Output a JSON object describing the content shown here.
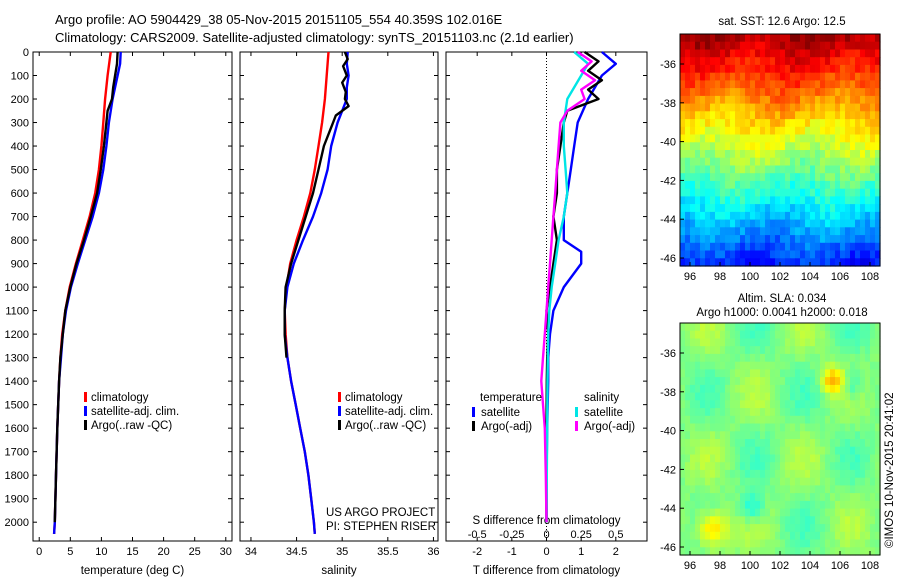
{
  "header": {
    "line1": "Argo profile: AO 5904429_38 05-Nov-2015 20151105_554 40.359S 102.016E",
    "line2": "Climatology: CARS2009. Satellite-adjusted climatology: synTS_20151103.nc (2.1d earlier)"
  },
  "maps": {
    "sst_title": "sat. SST: 12.6 Argo: 12.5",
    "sla_title1": "Altim. SLA: 0.034",
    "sla_title2": "Argo h1000: 0.0041 h2000: 0.018",
    "lat_ticks": [
      "-36",
      "-38",
      "-40",
      "-42",
      "-44",
      "-46"
    ],
    "lon_ticks": [
      "96",
      "98",
      "100",
      "102",
      "104",
      "106",
      "108"
    ]
  },
  "credit": "©IMOS 10-Nov-2015 20:41:02",
  "project": {
    "line1": "US ARGO PROJECT",
    "line2": "PI: STEPHEN RISER"
  },
  "colors": {
    "climatology": "#ff0000",
    "satellite": "#0000ff",
    "argo": "#000000",
    "salinity_satellite": "#00e5e5",
    "salinity_argo": "#ff00ff"
  },
  "chart_data": [
    {
      "type": "line",
      "xlabel": "temperature (deg C)",
      "ylabel": "",
      "xlim": [
        -1,
        31
      ],
      "ylim": [
        2080,
        0
      ],
      "x_ticks": [
        "0",
        "5",
        "10",
        "15",
        "20",
        "25",
        "30"
      ],
      "y_ticks": [
        "0",
        "100",
        "200",
        "300",
        "400",
        "500",
        "600",
        "700",
        "800",
        "900",
        "1000",
        "1100",
        "1200",
        "1300",
        "1400",
        "1500",
        "1600",
        "1700",
        "1800",
        "1900",
        "2000"
      ],
      "legend": [
        "climatology",
        "satellite-adj. clim.",
        "Argo(..raw -QC)"
      ],
      "series": [
        {
          "name": "climatology",
          "color": "#ff0000",
          "depth": [
            0,
            100,
            200,
            300,
            400,
            500,
            600,
            700,
            800,
            900,
            1000,
            1100,
            1200,
            1300,
            1400,
            1600,
            1800,
            2000,
            2050
          ],
          "values": [
            11.5,
            11.0,
            10.6,
            10.3,
            10.0,
            9.6,
            9.0,
            8.1,
            7.0,
            5.9,
            4.9,
            4.2,
            3.7,
            3.4,
            3.2,
            2.9,
            2.7,
            2.5,
            2.4
          ]
        },
        {
          "name": "satellite-adj. clim.",
          "color": "#0000ff",
          "depth": [
            0,
            50,
            100,
            200,
            300,
            400,
            500,
            600,
            700,
            800,
            900,
            1000,
            1100,
            1200,
            1300,
            1400,
            1600,
            1800,
            2000,
            2050
          ],
          "values": [
            13.1,
            13.0,
            12.6,
            11.8,
            11.2,
            10.8,
            10.3,
            9.6,
            8.6,
            7.4,
            6.2,
            5.1,
            4.3,
            3.8,
            3.5,
            3.2,
            2.9,
            2.7,
            2.5,
            2.4
          ]
        },
        {
          "name": "Argo(..raw -QC)",
          "color": "#000000",
          "depth": [
            0,
            50,
            100,
            150,
            200,
            250,
            300,
            400,
            500,
            600,
            700,
            800,
            900,
            1000,
            1100,
            1200,
            1300,
            1400,
            1600,
            1800,
            2000
          ],
          "values": [
            12.6,
            12.5,
            12.2,
            11.9,
            11.7,
            11.0,
            10.8,
            10.4,
            9.9,
            9.3,
            8.3,
            7.2,
            6.0,
            5.0,
            4.2,
            3.8,
            3.4,
            3.2,
            2.9,
            2.7,
            2.5
          ]
        }
      ]
    },
    {
      "type": "line",
      "xlabel": "salinity",
      "ylabel": "",
      "xlim": [
        33.88,
        36.05
      ],
      "ylim": [
        2080,
        0
      ],
      "x_ticks": [
        "34",
        "34.5",
        "35",
        "35.5",
        "36"
      ],
      "legend": [
        "climatology",
        "satellite-adj. clim.",
        "Argo(..raw -QC)"
      ],
      "series": [
        {
          "name": "climatology",
          "color": "#ff0000",
          "depth": [
            0,
            100,
            200,
            300,
            400,
            500,
            600,
            700,
            800,
            900,
            1000,
            1100,
            1200,
            1300,
            1400,
            1500,
            1600,
            1700,
            1800,
            1900,
            2000,
            2050
          ],
          "values": [
            34.85,
            34.83,
            34.81,
            34.78,
            34.74,
            34.7,
            34.65,
            34.58,
            34.5,
            34.43,
            34.39,
            34.37,
            34.38,
            34.4,
            34.44,
            34.49,
            34.54,
            34.59,
            34.63,
            34.66,
            34.69,
            34.7
          ]
        },
        {
          "name": "satellite-adj. clim.",
          "color": "#0000ff",
          "depth": [
            0,
            50,
            100,
            150,
            200,
            250,
            300,
            400,
            500,
            600,
            700,
            800,
            900,
            1000,
            1100,
            1200,
            1300,
            1400,
            1500,
            1600,
            1700,
            1800,
            1900,
            2000,
            2050
          ],
          "values": [
            35.06,
            35.05,
            35.07,
            35.05,
            35.05,
            35.0,
            34.95,
            34.88,
            34.84,
            34.77,
            34.68,
            34.57,
            34.47,
            34.4,
            34.37,
            34.37,
            34.4,
            34.44,
            34.49,
            34.54,
            34.59,
            34.63,
            34.66,
            34.69,
            34.7
          ]
        },
        {
          "name": "Argo(..raw -QC)",
          "color": "#000000",
          "depth": [
            0,
            30,
            60,
            100,
            130,
            170,
            200,
            230,
            270,
            300,
            400,
            500,
            600,
            700,
            800,
            900,
            1000,
            1100,
            1200,
            1300
          ],
          "values": [
            35.03,
            35.06,
            35.01,
            35.05,
            35.0,
            35.04,
            35.03,
            35.07,
            34.93,
            34.9,
            34.8,
            34.74,
            34.68,
            34.6,
            34.52,
            34.44,
            34.38,
            34.37,
            34.37,
            34.39
          ]
        }
      ]
    },
    {
      "type": "line",
      "xlabel": "T difference from climatology",
      "ylabel": "",
      "top_axis_label": "S difference from climatology",
      "xlim": [
        -2.9,
        2.9
      ],
      "ylim": [
        2080,
        0
      ],
      "x_ticks": [
        "-2",
        "-1",
        "0",
        "1",
        "2"
      ],
      "top_ticks": [
        "-0.5",
        "-0.25",
        "0",
        "0.25",
        "0.5"
      ],
      "legend_headers": [
        "temperature",
        "salinity"
      ],
      "legend": [
        "satellite",
        "Argo(-adj)",
        "satellite",
        "Argo(-adj)"
      ],
      "series": [
        {
          "name": "satellite",
          "color": "#0000ff",
          "depth": [
            0,
            50,
            100,
            200,
            300,
            400,
            500,
            600,
            700,
            800,
            850,
            900,
            1000,
            1100,
            1200,
            1300,
            1400,
            1600,
            1800,
            2000
          ],
          "values": [
            1.6,
            2.0,
            1.6,
            1.2,
            0.9,
            0.8,
            0.7,
            0.6,
            0.5,
            0.5,
            1.0,
            1.0,
            0.5,
            0.2,
            0.1,
            0.05,
            0.05,
            0.02,
            0.0,
            0.0
          ]
        },
        {
          "name": "Argo(-adj)",
          "color": "#000000",
          "depth": [
            0,
            40,
            80,
            120,
            160,
            200,
            250,
            300,
            400,
            500,
            600,
            700,
            800,
            900,
            1000,
            1100,
            1200,
            1300,
            1400,
            1600,
            1800,
            2000
          ],
          "values": [
            1.1,
            1.5,
            1.2,
            1.6,
            1.2,
            1.5,
            0.6,
            0.5,
            0.4,
            0.3,
            0.3,
            0.2,
            0.3,
            0.2,
            0.1,
            0.0,
            0.05,
            0.02,
            0.01,
            0.0,
            0.0,
            0.0
          ]
        },
        {
          "name": "satellite",
          "color": "#00e5e5",
          "depth": [
            0,
            50,
            100,
            200,
            300,
            400,
            500,
            600,
            700,
            800,
            900,
            1000,
            1100,
            1200,
            1400,
            1600,
            1800,
            2000
          ],
          "values": [
            0.8,
            1.2,
            1.0,
            0.6,
            0.5,
            0.5,
            0.55,
            0.6,
            0.5,
            0.35,
            0.25,
            0.15,
            0.08,
            0.05,
            0.03,
            0.02,
            0.01,
            0.0
          ]
        },
        {
          "name": "Argo(-adj)",
          "color": "#ff00ff",
          "depth": [
            0,
            40,
            80,
            120,
            160,
            200,
            250,
            300,
            400,
            500,
            600,
            700,
            800,
            900,
            1000,
            1100,
            1200,
            1300,
            1400,
            1500,
            1600,
            1800,
            2000
          ],
          "values": [
            0.9,
            1.3,
            1.0,
            1.4,
            1.0,
            1.1,
            0.6,
            0.4,
            0.35,
            0.3,
            0.25,
            0.2,
            0.15,
            0.1,
            0.05,
            0.0,
            -0.05,
            -0.1,
            -0.15,
            -0.1,
            -0.05,
            -0.02,
            0.0
          ]
        }
      ]
    }
  ]
}
